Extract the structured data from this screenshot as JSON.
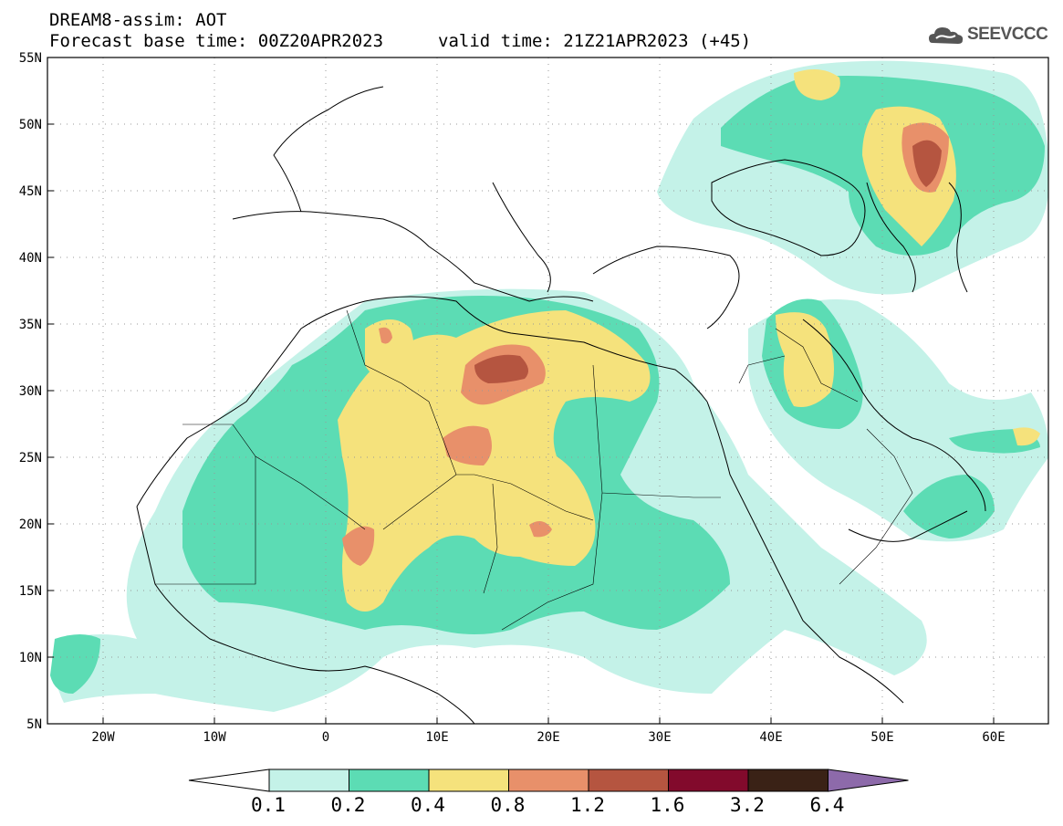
{
  "header": {
    "title_line1": "DREAM8-assim: AOT",
    "title_line2": "Forecast base time: 00Z20APR2023",
    "valid_time": "valid time: 21Z21APR2023 (+45)",
    "logo_text": "SEEVCCC",
    "logo_icon": "cloud-icon"
  },
  "map": {
    "projection": "lat-lon",
    "lon_range": [
      -25,
      65
    ],
    "lat_range": [
      5,
      55
    ],
    "lon_ticks": [
      "20W",
      "10W",
      "0",
      "10E",
      "20E",
      "30E",
      "40E",
      "50E",
      "60E"
    ],
    "lat_ticks": [
      "55N",
      "50N",
      "45N",
      "40N",
      "35N",
      "30N",
      "25N",
      "20N",
      "15N",
      "10N",
      "5N"
    ],
    "grid": true
  },
  "colorbar": {
    "labels": [
      "0.1",
      "0.2",
      "0.4",
      "0.8",
      "1.2",
      "1.6",
      "3.2",
      "6.4"
    ],
    "colors": [
      "#c4f2e8",
      "#5cdcb4",
      "#f5e27c",
      "#e8906a",
      "#b55540",
      "#820a2c",
      "#3a2216",
      "#8d6aaa"
    ]
  }
}
